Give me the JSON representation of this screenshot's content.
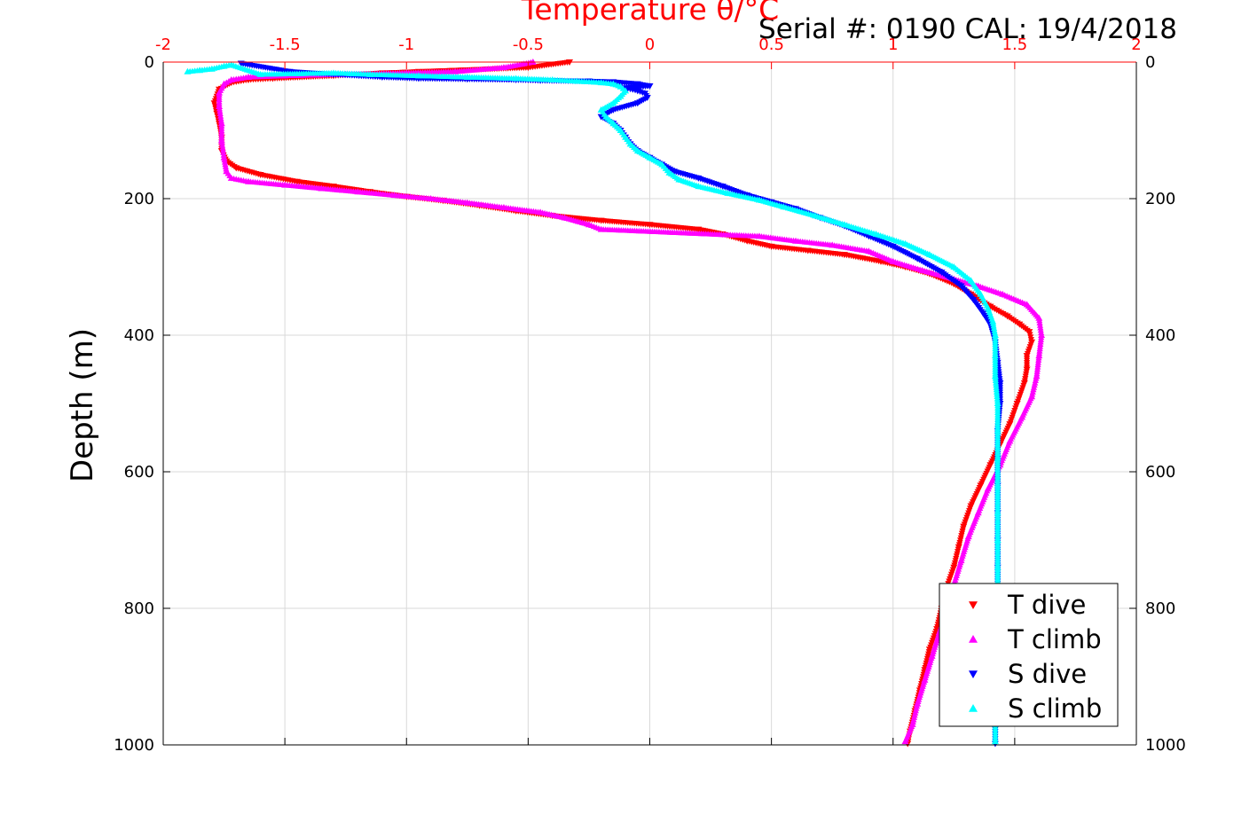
{
  "chart_data": {
    "type": "scatter",
    "title": "Serial #: 0190  CAL: 19/4/2018",
    "xlabel": "Temperature θ/°C",
    "ylabel": "Depth (m)",
    "xlim": [
      -2,
      2
    ],
    "ylim": [
      0,
      1000
    ],
    "y_reversed": true,
    "grid": true,
    "x_ticks": [
      "-2",
      "-1.5",
      "-1",
      "-0.5",
      "0",
      "0.5",
      "1",
      "1.5",
      "2"
    ],
    "y_ticks": [
      "0",
      "200",
      "400",
      "600",
      "800",
      "1000"
    ],
    "legend_position": "bottom-right",
    "series": [
      {
        "name": "T dive",
        "color": "#ff0000",
        "marker": "triangle-down",
        "points": [
          [
            -0.33,
            0
          ],
          [
            -0.5,
            8
          ],
          [
            -0.95,
            14
          ],
          [
            -1.1,
            16
          ],
          [
            -1.3,
            20
          ],
          [
            -1.55,
            24
          ],
          [
            -1.65,
            26
          ],
          [
            -1.72,
            30
          ],
          [
            -1.77,
            40
          ],
          [
            -1.79,
            60
          ],
          [
            -1.78,
            75
          ],
          [
            -1.77,
            90
          ],
          [
            -1.76,
            110
          ],
          [
            -1.76,
            130
          ],
          [
            -1.74,
            145
          ],
          [
            -1.7,
            155
          ],
          [
            -1.6,
            165
          ],
          [
            -1.45,
            175
          ],
          [
            -1.3,
            182
          ],
          [
            -1.15,
            190
          ],
          [
            -1.0,
            197
          ],
          [
            -0.85,
            203
          ],
          [
            -0.7,
            210
          ],
          [
            -0.55,
            218
          ],
          [
            -0.4,
            225
          ],
          [
            -0.2,
            232
          ],
          [
            0.0,
            238
          ],
          [
            0.2,
            245
          ],
          [
            0.3,
            252
          ],
          [
            0.4,
            262
          ],
          [
            0.5,
            270
          ],
          [
            0.65,
            276
          ],
          [
            0.8,
            282
          ],
          [
            0.95,
            292
          ],
          [
            1.05,
            300
          ],
          [
            1.15,
            310
          ],
          [
            1.25,
            325
          ],
          [
            1.32,
            340
          ],
          [
            1.4,
            358
          ],
          [
            1.47,
            372
          ],
          [
            1.52,
            384
          ],
          [
            1.56,
            395
          ],
          [
            1.57,
            410
          ],
          [
            1.55,
            430
          ],
          [
            1.55,
            450
          ],
          [
            1.54,
            470
          ],
          [
            1.51,
            500
          ],
          [
            1.48,
            530
          ],
          [
            1.44,
            560
          ],
          [
            1.4,
            590
          ],
          [
            1.36,
            620
          ],
          [
            1.32,
            650
          ],
          [
            1.29,
            680
          ],
          [
            1.27,
            710
          ],
          [
            1.25,
            740
          ],
          [
            1.22,
            770
          ],
          [
            1.2,
            800
          ],
          [
            1.18,
            830
          ],
          [
            1.15,
            860
          ],
          [
            1.13,
            890
          ],
          [
            1.11,
            920
          ],
          [
            1.09,
            950
          ],
          [
            1.07,
            980
          ],
          [
            1.06,
            998
          ]
        ]
      },
      {
        "name": "T climb",
        "color": "#ff00ff",
        "marker": "triangle-up",
        "points": [
          [
            -0.48,
            0
          ],
          [
            -0.6,
            8
          ],
          [
            -0.8,
            14
          ],
          [
            -1.0,
            16
          ],
          [
            -1.25,
            18
          ],
          [
            -1.5,
            20
          ],
          [
            -1.65,
            22
          ],
          [
            -1.72,
            26
          ],
          [
            -1.75,
            32
          ],
          [
            -1.77,
            45
          ],
          [
            -1.77,
            65
          ],
          [
            -1.76,
            90
          ],
          [
            -1.76,
            115
          ],
          [
            -1.75,
            140
          ],
          [
            -1.74,
            160
          ],
          [
            -1.72,
            170
          ],
          [
            -1.65,
            175
          ],
          [
            -1.5,
            180
          ],
          [
            -1.35,
            185
          ],
          [
            -1.2,
            190
          ],
          [
            -1.05,
            195
          ],
          [
            -0.9,
            200
          ],
          [
            -0.75,
            206
          ],
          [
            -0.6,
            213
          ],
          [
            -0.45,
            220
          ],
          [
            -0.35,
            228
          ],
          [
            -0.25,
            238
          ],
          [
            -0.2,
            245
          ],
          [
            0.45,
            255
          ],
          [
            0.6,
            262
          ],
          [
            0.75,
            268
          ],
          [
            0.9,
            277
          ],
          [
            1.0,
            292
          ],
          [
            1.12,
            305
          ],
          [
            1.25,
            318
          ],
          [
            1.35,
            328
          ],
          [
            1.45,
            340
          ],
          [
            1.55,
            355
          ],
          [
            1.6,
            375
          ],
          [
            1.61,
            400
          ],
          [
            1.6,
            430
          ],
          [
            1.59,
            460
          ],
          [
            1.57,
            490
          ],
          [
            1.53,
            520
          ],
          [
            1.48,
            555
          ],
          [
            1.44,
            590
          ],
          [
            1.39,
            625
          ],
          [
            1.35,
            660
          ],
          [
            1.31,
            695
          ],
          [
            1.28,
            730
          ],
          [
            1.25,
            765
          ],
          [
            1.22,
            800
          ],
          [
            1.19,
            835
          ],
          [
            1.16,
            870
          ],
          [
            1.13,
            905
          ],
          [
            1.1,
            940
          ],
          [
            1.08,
            970
          ],
          [
            1.05,
            995
          ]
        ]
      },
      {
        "name": "S dive",
        "color": "#0000ff",
        "marker": "triangle-down",
        "points": [
          [
            -1.68,
            2
          ],
          [
            -1.48,
            14
          ],
          [
            -1.3,
            18
          ],
          [
            -1.1,
            22
          ],
          [
            -0.95,
            24
          ],
          [
            -0.75,
            25
          ],
          [
            -0.55,
            26
          ],
          [
            -0.45,
            27
          ],
          [
            -0.25,
            28
          ],
          [
            -0.15,
            29
          ],
          [
            -0.05,
            32
          ],
          [
            0.0,
            35
          ],
          [
            -0.1,
            38
          ],
          [
            -0.05,
            42
          ],
          [
            -0.02,
            46
          ],
          [
            -0.01,
            52
          ],
          [
            -0.05,
            60
          ],
          [
            -0.15,
            70
          ],
          [
            -0.2,
            80
          ],
          [
            -0.15,
            90
          ],
          [
            -0.12,
            100
          ],
          [
            -0.1,
            110
          ],
          [
            -0.08,
            120
          ],
          [
            -0.05,
            130
          ],
          [
            0.0,
            140
          ],
          [
            0.05,
            150
          ],
          [
            0.1,
            160
          ],
          [
            0.2,
            170
          ],
          [
            0.3,
            182
          ],
          [
            0.4,
            195
          ],
          [
            0.5,
            205
          ],
          [
            0.6,
            215
          ],
          [
            0.7,
            228
          ],
          [
            0.8,
            240
          ],
          [
            0.9,
            255
          ],
          [
            1.0,
            270
          ],
          [
            1.1,
            288
          ],
          [
            1.2,
            308
          ],
          [
            1.28,
            328
          ],
          [
            1.33,
            348
          ],
          [
            1.37,
            368
          ],
          [
            1.4,
            385
          ],
          [
            1.42,
            410
          ],
          [
            1.43,
            440
          ],
          [
            1.44,
            470
          ],
          [
            1.44,
            500
          ],
          [
            1.43,
            540
          ],
          [
            1.43,
            580
          ],
          [
            1.43,
            620
          ],
          [
            1.43,
            660
          ],
          [
            1.43,
            700
          ],
          [
            1.43,
            740
          ],
          [
            1.43,
            780
          ],
          [
            1.43,
            820
          ],
          [
            1.43,
            860
          ],
          [
            1.43,
            900
          ],
          [
            1.42,
            940
          ],
          [
            1.42,
            970
          ],
          [
            1.42,
            998
          ]
        ]
      },
      {
        "name": "S climb",
        "color": "#00ffff",
        "marker": "triangle-up",
        "points": [
          [
            -1.9,
            14
          ],
          [
            -1.85,
            12
          ],
          [
            -1.8,
            10
          ],
          [
            -1.75,
            6
          ],
          [
            -1.72,
            4
          ],
          [
            -1.6,
            18
          ],
          [
            -1.3,
            16
          ],
          [
            -1.15,
            18
          ],
          [
            -0.95,
            20
          ],
          [
            -0.75,
            22
          ],
          [
            -0.55,
            24
          ],
          [
            -0.4,
            26
          ],
          [
            -0.3,
            28
          ],
          [
            -0.2,
            30
          ],
          [
            -0.15,
            32
          ],
          [
            -0.12,
            36
          ],
          [
            -0.1,
            42
          ],
          [
            -0.12,
            50
          ],
          [
            -0.15,
            60
          ],
          [
            -0.2,
            70
          ],
          [
            -0.18,
            80
          ],
          [
            -0.15,
            90
          ],
          [
            -0.12,
            100
          ],
          [
            -0.1,
            110
          ],
          [
            -0.08,
            120
          ],
          [
            -0.05,
            130
          ],
          [
            0.0,
            140
          ],
          [
            0.05,
            150
          ],
          [
            0.08,
            162
          ],
          [
            0.12,
            172
          ],
          [
            0.2,
            182
          ],
          [
            0.32,
            192
          ],
          [
            0.45,
            202
          ],
          [
            0.55,
            212
          ],
          [
            0.68,
            225
          ],
          [
            0.8,
            238
          ],
          [
            0.93,
            252
          ],
          [
            1.05,
            266
          ],
          [
            1.15,
            282
          ],
          [
            1.25,
            300
          ],
          [
            1.32,
            320
          ],
          [
            1.36,
            340
          ],
          [
            1.39,
            360
          ],
          [
            1.41,
            380
          ],
          [
            1.42,
            400
          ],
          [
            1.42,
            430
          ],
          [
            1.42,
            460
          ],
          [
            1.43,
            500
          ],
          [
            1.43,
            540
          ],
          [
            1.43,
            580
          ],
          [
            1.43,
            620
          ],
          [
            1.43,
            660
          ],
          [
            1.43,
            700
          ],
          [
            1.43,
            740
          ],
          [
            1.43,
            780
          ],
          [
            1.43,
            820
          ],
          [
            1.42,
            860
          ],
          [
            1.42,
            900
          ],
          [
            1.42,
            940
          ],
          [
            1.42,
            970
          ],
          [
            1.42,
            995
          ]
        ]
      }
    ]
  }
}
